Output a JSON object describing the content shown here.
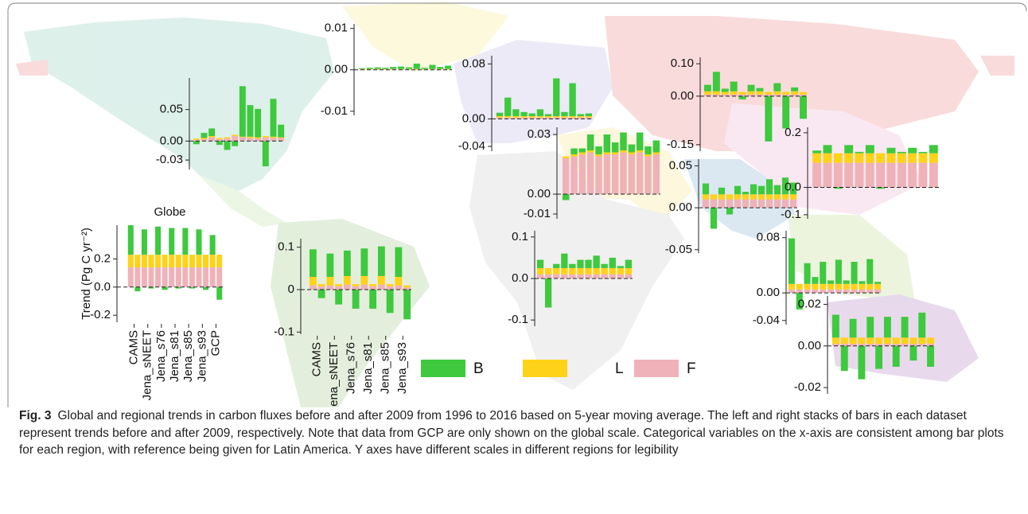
{
  "legend": [
    {
      "name": "B",
      "color": "#3ec93e"
    },
    {
      "name": "L",
      "color": "#ffd21a"
    },
    {
      "name": "F",
      "color": "#efb2b8"
    }
  ],
  "caption": {
    "label": "Fig. 3",
    "text": "Global and regional trends in carbon fluxes before and after 2009 from 1996 to 2016 based on 5-year moving average. The left and right stacks of bars in each dataset represent trends before and after 2009, respectively. Note that data from GCP are only shown on the global scale. Categorical variables on the x-axis are consistent among bar plots for each region, with reference being given for Latin America. Y axes have different scales in different regions for legibility"
  },
  "chart_data": [
    {
      "type": "bar",
      "stacked": true,
      "title": "Globe",
      "ylabel": "Trend (Pg C yr⁻²)",
      "categories": [
        "CAMS",
        null,
        "Jena_sNEET",
        null,
        "Jena_s76",
        null,
        "Jena_s81",
        null,
        "Jena_s85",
        null,
        "Jena_s93",
        null,
        "GCP",
        null
      ],
      "ylim": [
        -0.25,
        0.44
      ],
      "yticks": [
        0.2,
        {
          "value": 0,
          "label": "0.0"
        },
        -0.2
      ],
      "series": [
        {
          "values": [
            0.21,
            -0.03,
            0.18,
            -0.01,
            0.2,
            -0.02,
            0.19,
            -0.01,
            0.19,
            -0.01,
            0.18,
            -0.02,
            0.14,
            -0.09
          ]
        },
        {
          "values": [
            0.09,
            0.09,
            0.09,
            0.09,
            0.09,
            0.09,
            0.09,
            0.09,
            0.09,
            0.09,
            0.09,
            0.09,
            0.09,
            0.09
          ]
        },
        {
          "values": [
            0.14,
            0.14,
            0.14,
            0.14,
            0.14,
            0.14,
            0.14,
            0.14,
            0.14,
            0.14,
            0.14,
            0.14,
            0.14,
            0.14
          ]
        }
      ]
    },
    {
      "type": "bar",
      "stacked": true,
      "categories": [
        "CAMS",
        null,
        "Jena_sNEET",
        null,
        "Jena_s76",
        null,
        "Jena_s81",
        null,
        "Jena_s85",
        null,
        "Jena_s93",
        null
      ],
      "ylim": [
        -0.105,
        0.12
      ],
      "yticks": [
        0.1,
        0,
        -0.1
      ],
      "series": [
        {
          "values": [
            0.065,
            -0.02,
            0.055,
            -0.035,
            0.06,
            -0.045,
            0.065,
            -0.045,
            0.07,
            -0.055,
            0.07,
            -0.07
          ]
        },
        {
          "values": [
            0.02,
            0.005,
            0.02,
            0.005,
            0.02,
            0.005,
            0.02,
            0.005,
            0.02,
            0.005,
            0.02,
            0.005
          ]
        },
        {
          "values": [
            0.01,
            0.008,
            0.01,
            0.008,
            0.012,
            0.008,
            0.012,
            0.008,
            0.012,
            0.008,
            0.01,
            0.005
          ]
        }
      ]
    },
    {
      "type": "bar",
      "stacked": true,
      "ylim": [
        -0.045,
        0.1
      ],
      "yticks": [
        0.05,
        {
          "value": 0,
          "label": "0.00"
        },
        -0.03
      ],
      "series": [
        {
          "values": [
            -0.005,
            0.008,
            0.012,
            -0.006,
            -0.014,
            -0.008,
            0.08,
            0.05,
            0.045,
            -0.04,
            0.06,
            0.02
          ]
        },
        {
          "values": [
            0.002,
            0.002,
            0.002,
            0.002,
            0.002,
            0.002,
            0.001,
            0.002,
            0.002,
            0.002,
            0.002,
            0.001
          ]
        },
        {
          "values": [
            0.002,
            0.003,
            0.006,
            0.003,
            0.004,
            0.008,
            0.006,
            0.005,
            0.004,
            0.006,
            0.005,
            0.005
          ]
        }
      ]
    },
    {
      "type": "bar",
      "stacked": true,
      "ylim": [
        -0.011,
        0.0111
      ],
      "yticks": [
        0.01,
        {
          "value": 0,
          "label": "0.00"
        },
        -0.01
      ],
      "series": [
        {
          "values": [
            0.0002,
            0.0003,
            0.0004,
            0.0003,
            0.0005,
            0.0006,
            0.0004,
            0.0013,
            0.0003,
            0.001,
            0.0005,
            0.0008
          ]
        },
        {
          "values": [
            0.0001,
            0.0001,
            0.0001,
            0.0001,
            0.0001,
            0.0001,
            0.0001,
            0.0001,
            0.0001,
            0.0001,
            0.0001,
            0.0001
          ]
        },
        {
          "values": [
            0.0001,
            0.0001,
            0.0001,
            0.0001,
            0.0001,
            0.0001,
            0.0001,
            0.0001,
            0.0001,
            0.0001,
            0.0001,
            0.0001
          ]
        }
      ]
    },
    {
      "type": "bar",
      "stacked": true,
      "ylim": [
        -0.047,
        0.092
      ],
      "yticks": [
        0.08,
        {
          "value": 0,
          "label": "0.00"
        },
        -0.04
      ],
      "series": [
        {
          "values": [
            0.005,
            0.027,
            0.01,
            0.006,
            0.004,
            0.01,
            0.003,
            0.055,
            0.006,
            0.048,
            0.003,
            0.004
          ]
        },
        {
          "values": [
            0.002,
            0.002,
            0.002,
            0.002,
            0.002,
            0.002,
            0.002,
            0.002,
            0.002,
            0.002,
            0.002,
            0.002
          ]
        },
        {
          "values": [
            0.002,
            0.002,
            0.002,
            0.002,
            0.002,
            0.002,
            0.002,
            0.002,
            0.002,
            0.002,
            0.002,
            0.002
          ]
        }
      ]
    },
    {
      "type": "bar",
      "stacked": true,
      "ylim": [
        -0.17,
        0.12
      ],
      "yticks": [
        {
          "value": 0.1,
          "label": "0.10"
        },
        {
          "value": 0,
          "label": "0.00"
        },
        -0.15
      ],
      "series": [
        {
          "values": [
            0.02,
            0.06,
            0.01,
            0.03,
            -0.01,
            0.02,
            0.01,
            -0.14,
            0.025,
            -0.1,
            0.012,
            -0.07
          ]
        },
        {
          "values": [
            0.01,
            0.01,
            0.008,
            0.01,
            0.008,
            0.01,
            0.01,
            0.008,
            0.01,
            0.008,
            0.01,
            0.008
          ]
        },
        {
          "values": [
            0.005,
            0.005,
            0.005,
            0.005,
            0.005,
            0.005,
            0.005,
            0.005,
            0.005,
            0.005,
            0.005,
            0.005
          ]
        }
      ]
    },
    {
      "type": "bar",
      "stacked": true,
      "ylim": [
        -0.0124,
        0.0336
      ],
      "yticks": [
        0.03,
        {
          "value": 0,
          "label": "0.00"
        },
        -0.01
      ],
      "series": [
        {
          "values": [
            -0.003,
            0.003,
            0.002,
            0.008,
            0.004,
            0.009,
            0.005,
            0.009,
            0.004,
            0.009,
            0.004,
            0.006
          ]
        },
        {
          "values": [
            0.001,
            0.001,
            0.001,
            0.001,
            0.001,
            0.001,
            0.001,
            0.001,
            0.001,
            0.001,
            0.001,
            0.001
          ]
        },
        {
          "values": [
            0.018,
            0.019,
            0.02,
            0.021,
            0.019,
            0.02,
            0.02,
            0.021,
            0.02,
            0.021,
            0.019,
            0.02
          ]
        }
      ]
    },
    {
      "type": "bar",
      "stacked": true,
      "ylim": [
        -0.054,
        0.058
      ],
      "yticks": [
        0.05,
        {
          "value": 0,
          "label": "0.00"
        },
        -0.05
      ],
      "series": [
        {
          "values": [
            0.013,
            -0.025,
            0.008,
            -0.008,
            0.01,
            0.003,
            0.012,
            0.01,
            0.018,
            0.011,
            0.02,
            0.014
          ]
        },
        {
          "values": [
            0.006,
            0.006,
            0.006,
            0.006,
            0.006,
            0.006,
            0.006,
            0.006,
            0.006,
            0.006,
            0.006,
            0.006
          ]
        },
        {
          "values": [
            0.01,
            0.01,
            0.01,
            0.01,
            0.01,
            0.01,
            0.01,
            0.01,
            0.01,
            0.01,
            0.01,
            0.01
          ]
        }
      ]
    },
    {
      "type": "bar",
      "stacked": true,
      "ylim": [
        -0.115,
        0.22
      ],
      "yticks": [
        0.2,
        {
          "value": 0,
          "label": "0.0"
        },
        -0.1
      ],
      "series": [
        {
          "values": [
            0.01,
            0.03,
            -0.005,
            0.03,
            0.005,
            0.03,
            -0.005,
            0.02,
            0.005,
            0.02,
            0.005,
            0.03
          ]
        },
        {
          "values": [
            0.035,
            0.035,
            0.035,
            0.035,
            0.035,
            0.035,
            0.035,
            0.035,
            0.035,
            0.035,
            0.035,
            0.035
          ]
        },
        {
          "values": [
            0.09,
            0.09,
            0.09,
            0.09,
            0.09,
            0.09,
            0.09,
            0.09,
            0.09,
            0.09,
            0.09,
            0.09
          ]
        }
      ]
    },
    {
      "type": "bar",
      "stacked": true,
      "ylim": [
        -0.115,
        0.115
      ],
      "yticks": [
        0.1,
        {
          "value": 0,
          "label": "0.0"
        },
        -0.1
      ],
      "series": [
        {
          "values": [
            0.02,
            -0.07,
            0.01,
            0.035,
            0.01,
            0.02,
            0.02,
            0.03,
            0.01,
            0.025,
            0.005,
            0.02
          ]
        },
        {
          "values": [
            0.015,
            0.015,
            0.015,
            0.015,
            0.015,
            0.015,
            0.015,
            0.015,
            0.015,
            0.015,
            0.015,
            0.015
          ]
        },
        {
          "values": [
            0.01,
            0.01,
            0.01,
            0.01,
            0.01,
            0.01,
            0.01,
            0.01,
            0.01,
            0.01,
            0.01,
            0.01
          ]
        }
      ]
    },
    {
      "type": "bar",
      "stacked": true,
      "ylim": [
        -0.046,
        0.09
      ],
      "yticks": [
        0.08,
        {
          "value": 0,
          "label": "0.00"
        },
        -0.04
      ],
      "series": [
        {
          "values": [
            0.066,
            -0.024,
            0.03,
            0.01,
            0.032,
            0.005,
            0.035,
            0.005,
            0.032,
            0.004,
            0.036,
            0.003
          ]
        },
        {
          "values": [
            0.008,
            0.008,
            0.008,
            0.008,
            0.008,
            0.008,
            0.008,
            0.008,
            0.008,
            0.008,
            0.008,
            0.008
          ]
        },
        {
          "values": [
            0.005,
            0.005,
            0.005,
            0.005,
            0.005,
            0.005,
            0.005,
            0.005,
            0.005,
            0.005,
            0.005,
            0.005
          ]
        }
      ]
    },
    {
      "type": "bar",
      "stacked": true,
      "ylim": [
        -0.023,
        0.024
      ],
      "yticks": [
        0.02,
        {
          "value": 0,
          "label": "0.00"
        },
        -0.02
      ],
      "series": [
        {
          "values": [
            0.011,
            -0.012,
            0.009,
            -0.016,
            0.01,
            -0.011,
            0.01,
            -0.01,
            0.01,
            -0.007,
            0.012,
            -0.01
          ]
        },
        {
          "values": [
            0.003,
            0.003,
            0.003,
            0.003,
            0.003,
            0.003,
            0.003,
            0.003,
            0.003,
            0.003,
            0.003,
            0.003
          ]
        },
        {
          "values": [
            0.001,
            0.001,
            0.001,
            0.001,
            0.001,
            0.001,
            0.001,
            0.001,
            0.001,
            0.001,
            0.001,
            0.001
          ]
        }
      ]
    }
  ]
}
